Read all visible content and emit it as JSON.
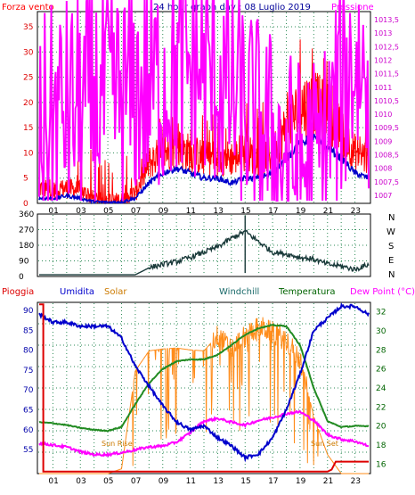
{
  "header": {
    "left_label": "Forza vento",
    "title": "24 hour graph day : 08 Luglio 2019",
    "right_label": "Pressione"
  },
  "colors": {
    "wind": "#ff0000",
    "gust_avg": "#0000cc",
    "pressure": "#ff00ff",
    "direction": "#1a3a3a",
    "humidity": "#0000cc",
    "solar": "#ff8c1a",
    "temperature": "#228b22",
    "dewpoint": "#ff00ff",
    "rain": "#dd0000",
    "grid": "#2e8b57",
    "frame": "#000000"
  },
  "x_ticks": [
    "01",
    "03",
    "05",
    "07",
    "09",
    "11",
    "13",
    "15",
    "17",
    "19",
    "21",
    "23"
  ],
  "direction_labels": [
    "N",
    "W",
    "S",
    "E",
    "N"
  ],
  "bottom_header": {
    "rain": "Pioggia",
    "humidity": "Umidita",
    "solar": "Solar",
    "windchill": "Windchill",
    "temperature": "Temperatura",
    "dewpoint": "Dew Point (°C)"
  },
  "annotations": {
    "sunrise": "Sun Rise",
    "sunset": "Sun Set"
  },
  "chart_data": [
    {
      "type": "line",
      "panel": "wind",
      "title": "24 hour graph day : 08 Luglio 2019",
      "x": [
        0,
        1,
        2,
        3,
        4,
        5,
        6,
        7,
        8,
        9,
        10,
        11,
        12,
        13,
        14,
        15,
        16,
        17,
        18,
        19,
        20,
        21,
        22,
        23,
        24
      ],
      "y_left_ticks": [
        "0",
        "5",
        "10",
        "15",
        "20",
        "25",
        "30",
        "35"
      ],
      "ylim_left": [
        0,
        38
      ],
      "y_right_ticks": [
        "1007",
        "1007,5",
        "1008",
        "1008,5",
        "1009",
        "1009,5",
        "1010",
        "1010,5",
        "1011",
        "1011,5",
        "1012",
        "1012,5",
        "1013",
        "1013,5"
      ],
      "ylim_right": [
        1006.7,
        1013.8
      ],
      "series": [
        {
          "name": "Forza vento",
          "axis": "left",
          "values": [
            3,
            2.5,
            3,
            2.5,
            1,
            0.5,
            0.8,
            2,
            8,
            10,
            11,
            10,
            9,
            9,
            9,
            10,
            9,
            10,
            15,
            19,
            20,
            18,
            14,
            10,
            9
          ]
        },
        {
          "name": "",
          "axis": "left",
          "values": [
            1,
            1,
            1.5,
            1,
            0.3,
            0.2,
            0.3,
            1,
            4,
            6,
            7,
            6,
            5,
            5,
            4,
            5,
            5,
            6,
            9,
            12,
            13,
            11,
            9,
            6,
            5
          ]
        },
        {
          "name": "Pressione",
          "axis": "right",
          "values": [
            1009.5,
            1009.9,
            1010.2,
            1010.3,
            1010.5,
            1010.6,
            1010.7,
            1010.8,
            1011.0,
            1011.2,
            1011.5,
            1011.7,
            1011.6,
            1011.3,
            1010.7,
            1010.1,
            1009.5,
            1009.0,
            1008.4,
            1008.0,
            1008.1,
            1009.0,
            1011.0,
            1012.0,
            1011.3
          ]
        }
      ]
    },
    {
      "type": "line",
      "panel": "direction",
      "x": [
        0,
        1,
        2,
        3,
        4,
        5,
        6,
        7,
        8,
        9,
        10,
        11,
        12,
        13,
        14,
        15,
        16,
        17,
        18,
        19,
        20,
        21,
        22,
        23,
        24
      ],
      "y_ticks": [
        "0",
        "90",
        "180",
        "270",
        "360"
      ],
      "ylim": [
        0,
        360
      ],
      "series": [
        {
          "name": "",
          "values": [
            10,
            10,
            10,
            10,
            10,
            10,
            10,
            10,
            50,
            70,
            85,
            110,
            140,
            170,
            220,
            260,
            200,
            140,
            130,
            110,
            100,
            70,
            60,
            40,
            70
          ]
        }
      ]
    },
    {
      "type": "line",
      "panel": "temperature",
      "x": [
        0,
        1,
        2,
        3,
        4,
        5,
        6,
        7,
        8,
        9,
        10,
        11,
        12,
        13,
        14,
        15,
        16,
        17,
        18,
        19,
        20,
        21,
        22,
        23,
        24
      ],
      "y_left_ticks": [
        "55",
        "60",
        "65",
        "70",
        "75",
        "80",
        "85",
        "90"
      ],
      "ylim_left": [
        49,
        92
      ],
      "y_right_ticks": [
        "16",
        "18",
        "20",
        "22",
        "24",
        "26",
        "28",
        "30",
        "32"
      ],
      "ylim_right": [
        15.0,
        33.0
      ],
      "series": [
        {
          "name": "Umidita",
          "axis": "left",
          "values": [
            89,
            87,
            87,
            86,
            86,
            86,
            83,
            76,
            71,
            66,
            62,
            60,
            61,
            58,
            56,
            53,
            54,
            58,
            65,
            74,
            85,
            88,
            91,
            91,
            89
          ]
        },
        {
          "name": "Temperatura",
          "axis": "right",
          "values": [
            20.4,
            20.3,
            20.1,
            19.8,
            19.6,
            19.5,
            19.9,
            22.3,
            24.5,
            26.0,
            26.8,
            27.0,
            27.0,
            27.5,
            28.5,
            29.6,
            30.3,
            30.6,
            30.5,
            28.5,
            24.0,
            20.5,
            19.9,
            20.0,
            20.0
          ]
        },
        {
          "name": "Dew Point (°C)",
          "axis": "right",
          "values": [
            18.2,
            18.0,
            17.8,
            17.3,
            17.0,
            17.0,
            17.2,
            17.5,
            17.8,
            17.9,
            18.3,
            19.3,
            20.5,
            20.8,
            20.4,
            20.1,
            20.6,
            20.9,
            21.3,
            21.5,
            20.6,
            19.1,
            18.6,
            18.4,
            17.9
          ]
        },
        {
          "name": "Solar",
          "axis": "right",
          "values": [
            15.0,
            15.0,
            15.0,
            15.0,
            15.0,
            15.0,
            15.5,
            25.8,
            27.9,
            28.1,
            28.2,
            28.0,
            27.9,
            29.5,
            28.0,
            29.5,
            30.5,
            29.8,
            29.0,
            27.0,
            21.0,
            17.0,
            15.0,
            15.0,
            15.0
          ]
        },
        {
          "name": "Pioggia",
          "axis": "left",
          "values": [
            91.5,
            49.5,
            49.5,
            49.5,
            49.5,
            49.5,
            49.5,
            49.5,
            49.5,
            49.5,
            49.5,
            49.5,
            49.5,
            49.5,
            49.5,
            49.5,
            49.5,
            49.5,
            49.5,
            49.5,
            49.5,
            50.0,
            52.0,
            52.0,
            52.0
          ]
        }
      ]
    }
  ]
}
